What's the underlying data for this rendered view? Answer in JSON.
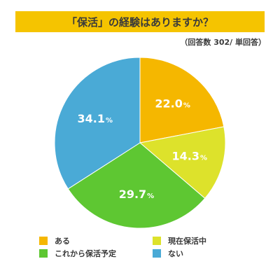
{
  "header": {
    "title": "「保活」の経験はありますか？",
    "note": "（回答数 302/ 単回答）"
  },
  "chart_data": {
    "type": "pie",
    "title": "「保活」の経験はありますか？",
    "slices": [
      {
        "label": "ある",
        "value": 22.0,
        "display": "22.0",
        "color": "#f5b700"
      },
      {
        "label": "現在保活中",
        "value": 14.3,
        "display": "14.3",
        "color": "#dde22b"
      },
      {
        "label": "これから保活予定",
        "value": 29.7,
        "display": "29.7",
        "color": "#5ec732"
      },
      {
        "label": "ない",
        "value": 34.1,
        "display": "34.1",
        "color": "#4aaad6"
      }
    ],
    "unit": "%",
    "legend": "bottom"
  }
}
